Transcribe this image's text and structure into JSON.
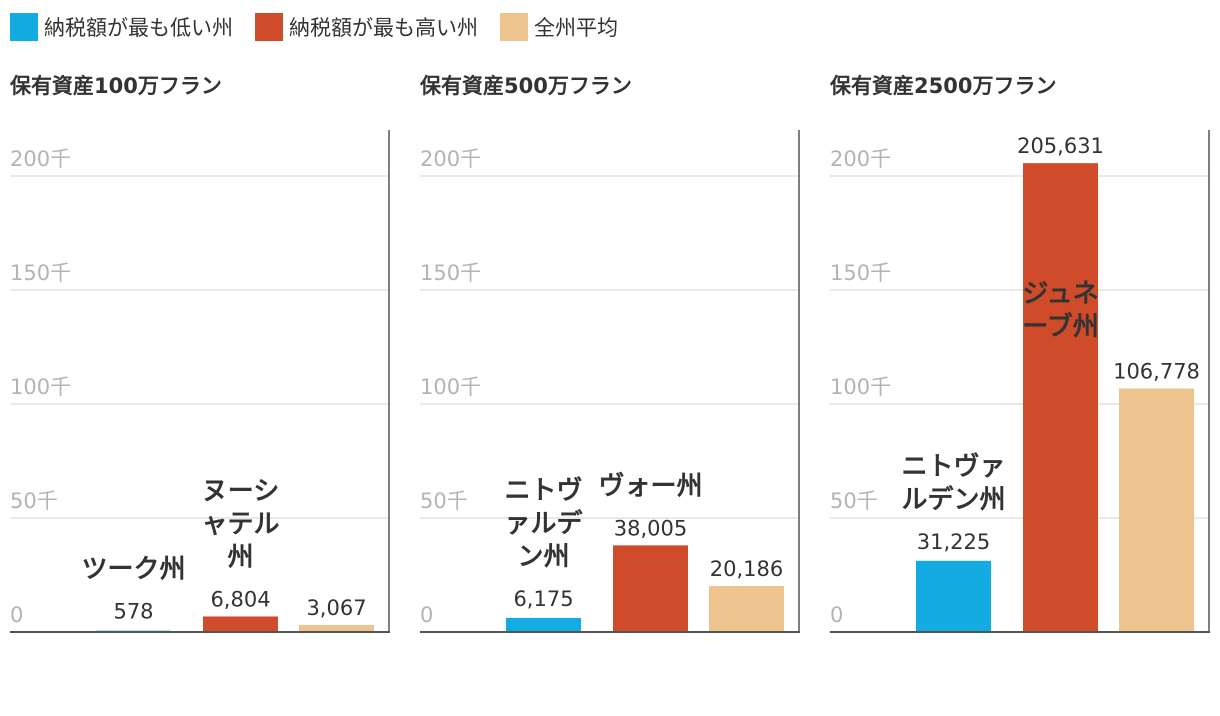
{
  "legend": [
    {
      "label": "納税額が最も低い州",
      "color": "#14aae2"
    },
    {
      "label": "納税額が最も高い州",
      "color": "#cf4b29"
    },
    {
      "label": "全州平均",
      "color": "#edc38e"
    }
  ],
  "chart_data": [
    {
      "type": "bar",
      "title": "保有資産100万フラン",
      "categories": [
        "納税額が最も低い州",
        "納税額が最も高い州",
        "全州平均"
      ],
      "values": [
        578,
        6804,
        3067
      ],
      "value_labels": [
        "578",
        "6,804",
        "3,067"
      ],
      "region_labels": [
        [
          "ツーク州"
        ],
        [
          "ヌーシ",
          "ャテル",
          "州"
        ],
        []
      ],
      "colors": [
        "#14aae2",
        "#cf4b29",
        "#edc38e"
      ],
      "ylim": [
        0,
        210000
      ],
      "yticks": [
        0,
        50000,
        100000,
        150000,
        200000
      ],
      "ytick_labels": [
        "0",
        "50千",
        "100千",
        "150千",
        "200千"
      ]
    },
    {
      "type": "bar",
      "title": "保有資産500万フラン",
      "categories": [
        "納税額が最も低い州",
        "納税額が最も高い州",
        "全州平均"
      ],
      "values": [
        6175,
        38005,
        20186
      ],
      "value_labels": [
        "6,175",
        "38,005",
        "20,186"
      ],
      "region_labels": [
        [
          "ニトヴ",
          "ァルデ",
          "ン州"
        ],
        [
          "ヴォー州"
        ],
        []
      ],
      "colors": [
        "#14aae2",
        "#cf4b29",
        "#edc38e"
      ],
      "ylim": [
        0,
        210000
      ],
      "yticks": [
        0,
        50000,
        100000,
        150000,
        200000
      ],
      "ytick_labels": [
        "0",
        "50千",
        "100千",
        "150千",
        "200千"
      ]
    },
    {
      "type": "bar",
      "title": "保有資産2500万フラン",
      "categories": [
        "納税額が最も低い州",
        "納税額が最も高い州",
        "全州平均"
      ],
      "values": [
        31225,
        205631,
        106778
      ],
      "value_labels": [
        "31,225",
        "205,631",
        "106,778"
      ],
      "region_labels": [
        [
          "ニトヴァ",
          "ルデン州"
        ],
        [
          "ジュネ",
          "ーブ州"
        ],
        []
      ],
      "colors": [
        "#14aae2",
        "#cf4b29",
        "#edc38e"
      ],
      "ylim": [
        0,
        210000
      ],
      "yticks": [
        0,
        50000,
        100000,
        150000,
        200000
      ],
      "ytick_labels": [
        "0",
        "50千",
        "100千",
        "150千",
        "200千"
      ]
    }
  ]
}
